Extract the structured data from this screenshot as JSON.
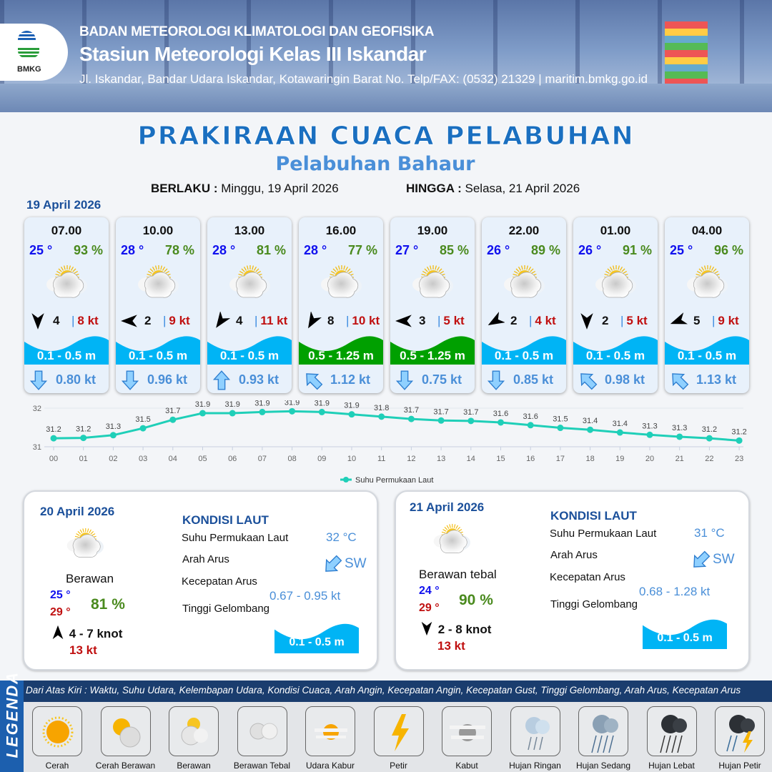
{
  "header": {
    "agency": "BADAN METEOROLOGI KLIMATOLOGI DAN GEOFISIKA",
    "station": "Stasiun Meteorologi Kelas III Iskandar",
    "address": "Jl. Iskandar, Bandar Udara Iskandar, Kotawaringin Barat No. Telp/FAX: (0532) 21329 | maritim.bmkg.go.id",
    "logo_text": "BMKG"
  },
  "title": "PRAKIRAAN CUACA PELABUHAN",
  "subtitle": "Pelabuhan Bahaur",
  "validity": {
    "from_label": "BERLAKU :",
    "from": "Minggu, 19 April 2026",
    "to_label": "HINGGA :",
    "to": "Selasa, 21 April 2026"
  },
  "day1": {
    "date": "19 April 2026",
    "forecasts": [
      {
        "time": "07.00",
        "temp": "25 °",
        "hum": "93 %",
        "weather": "Berawan",
        "wind_dir_deg": 180,
        "wind": "4",
        "gust": "8 kt",
        "wave": "0.1 - 0.5 m",
        "wave_color": "#00b4f5",
        "current_dir_deg": 180,
        "current": "0.80 kt"
      },
      {
        "time": "10.00",
        "temp": "28 °",
        "hum": "78 %",
        "weather": "Berawan",
        "wind_dir_deg": 270,
        "wind": "2",
        "gust": "9 kt",
        "wave": "0.1 - 0.5 m",
        "wave_color": "#00b4f5",
        "current_dir_deg": 180,
        "current": "0.96 kt"
      },
      {
        "time": "13.00",
        "temp": "28 °",
        "hum": "81 %",
        "weather": "Berawan",
        "wind_dir_deg": 215,
        "wind": "4",
        "gust": "11 kt",
        "wave": "0.1 - 0.5 m",
        "wave_color": "#00b4f5",
        "current_dir_deg": 0,
        "current": "0.93 kt"
      },
      {
        "time": "16.00",
        "temp": "28 °",
        "hum": "77 %",
        "weather": "Berawan",
        "wind_dir_deg": 210,
        "wind": "8",
        "gust": "10 kt",
        "wave": "0.5 - 1.25 m",
        "wave_color": "#00a000",
        "current_dir_deg": 315,
        "current": "1.12 kt"
      },
      {
        "time": "19.00",
        "temp": "27 °",
        "hum": "85 %",
        "weather": "Berawan",
        "wind_dir_deg": 270,
        "wind": "3",
        "gust": "5 kt",
        "wave": "0.5 - 1.25 m",
        "wave_color": "#00a000",
        "current_dir_deg": 180,
        "current": "0.75 kt"
      },
      {
        "time": "22.00",
        "temp": "26 °",
        "hum": "89 %",
        "weather": "Berawan",
        "wind_dir_deg": 240,
        "wind": "2",
        "gust": "4 kt",
        "wave": "0.1 - 0.5 m",
        "wave_color": "#00b4f5",
        "current_dir_deg": 180,
        "current": "0.85 kt"
      },
      {
        "time": "01.00",
        "temp": "26 °",
        "hum": "91 %",
        "weather": "Berawan",
        "wind_dir_deg": 180,
        "wind": "2",
        "gust": "5 kt",
        "wave": "0.1 - 0.5 m",
        "wave_color": "#00b4f5",
        "current_dir_deg": 315,
        "current": "0.98 kt"
      },
      {
        "time": "04.00",
        "temp": "25 °",
        "hum": "96 %",
        "weather": "Berawan",
        "wind_dir_deg": 250,
        "wind": "5",
        "gust": "9 kt",
        "wave": "0.1 - 0.5 m",
        "wave_color": "#00b4f5",
        "current_dir_deg": 315,
        "current": "1.13 kt"
      }
    ]
  },
  "chart_data": {
    "type": "line",
    "x": [
      "00",
      "01",
      "02",
      "03",
      "04",
      "05",
      "06",
      "07",
      "08",
      "09",
      "10",
      "11",
      "12",
      "13",
      "14",
      "15",
      "16",
      "17",
      "18",
      "19",
      "20",
      "21",
      "22",
      "23"
    ],
    "series": [
      {
        "name": "Suhu Permukaan Laut",
        "color": "#1fcfb8",
        "values": [
          31.2,
          31.2,
          31.3,
          31.5,
          31.7,
          31.9,
          31.9,
          31.9,
          31.9,
          31.9,
          31.9,
          31.8,
          31.7,
          31.7,
          31.7,
          31.6,
          31.6,
          31.5,
          31.4,
          31.4,
          31.3,
          31.3,
          31.2,
          31.2
        ]
      }
    ],
    "plot_values": [
      31.22,
      31.23,
      31.3,
      31.48,
      31.7,
      31.87,
      31.87,
      31.9,
      31.92,
      31.9,
      31.84,
      31.78,
      31.72,
      31.68,
      31.67,
      31.63,
      31.56,
      31.49,
      31.44,
      31.37,
      31.31,
      31.26,
      31.22,
      31.16
    ],
    "yticks": [
      31,
      32
    ],
    "ylim": [
      31,
      32
    ],
    "grid": true,
    "legend": "bottom"
  },
  "days": [
    {
      "date": "20 April 2026",
      "weather": "Berawan",
      "tmin": "25 °",
      "tmax": "29 °",
      "hum": "81 %",
      "wind_dir_deg": 0,
      "wind": "4 - 7 knot",
      "gust": "13 kt",
      "sea_title": "KONDISI LAUT",
      "sst_label": "Suhu Permukaan Laut",
      "sst": "32 °C",
      "dir_label": "Arah Arus",
      "dir": "SW",
      "spd_label": "Kecepatan Arus",
      "spd_a": "0.67",
      "spd_b": " - 0.95 kt",
      "wave_label": "Tinggi Gelombang",
      "wave": "0.1 - 0.5 m"
    },
    {
      "date": "21 April 2026",
      "weather": "Berawan tebal",
      "tmin": "24 °",
      "tmax": "29 °",
      "hum": "90 %",
      "wind_dir_deg": 180,
      "wind": "2 - 8 knot",
      "gust": "13 kt",
      "sea_title": "KONDISI LAUT",
      "sst_label": "Suhu Permukaan Laut",
      "sst": "31 °C",
      "dir_label": "Arah Arus",
      "dir": "SW",
      "spd_label": "Kecepatan Arus",
      "spd_a": "",
      "spd_b": "0.68 - 1.28 kt",
      "wave_label": "Tinggi Gelombang",
      "wave": "0.1 - 0.5 m"
    }
  ],
  "legend": {
    "title": "LEGENDA",
    "description": "Dari Atas Kiri : Waktu, Suhu Udara, Kelembapan Udara, Kondisi Cuaca, Arah Angin, Kecepatan Angin, Kecepatan Gust, Tinggi Gelombang, Arah Arus, Kecepatan Arus",
    "items": [
      {
        "label": "Cerah",
        "icon": "sun"
      },
      {
        "label": "Cerah Berawan",
        "icon": "sun-cloud"
      },
      {
        "label": "Berawan",
        "icon": "cloud-sun"
      },
      {
        "label": "Berawan Tebal",
        "icon": "clouds"
      },
      {
        "label": "Udara Kabur",
        "icon": "haze"
      },
      {
        "label": "Petir",
        "icon": "lightning"
      },
      {
        "label": "Kabut",
        "icon": "fog"
      },
      {
        "label": "Hujan Ringan",
        "icon": "light-rain"
      },
      {
        "label": "Hujan Sedang",
        "icon": "moderate-rain"
      },
      {
        "label": "Hujan Lebat",
        "icon": "heavy-rain"
      },
      {
        "label": "Hujan Petir",
        "icon": "thunderstorm"
      }
    ]
  }
}
